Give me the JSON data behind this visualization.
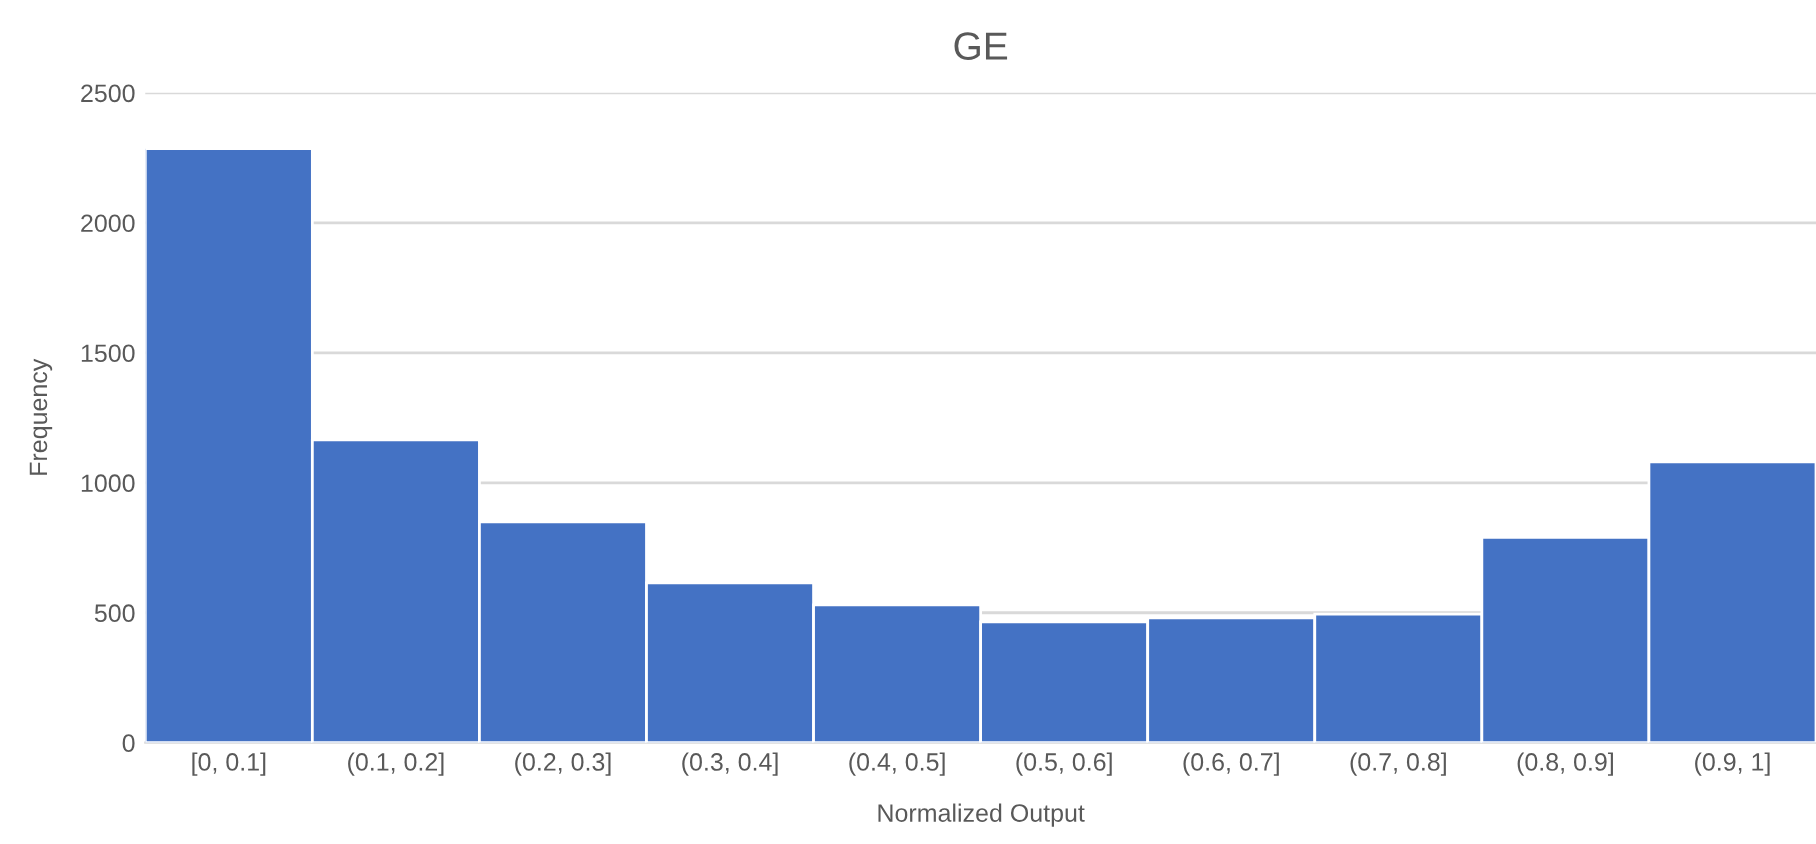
{
  "chart_data": {
    "type": "bar",
    "title": "GE",
    "xlabel": "Normalized Output",
    "ylabel": "Frequency",
    "categories": [
      "[0, 0.1]",
      "(0.1, 0.2]",
      "(0.2, 0.3]",
      "(0.3, 0.4]",
      "(0.4, 0.5]",
      "(0.5, 0.6]",
      "(0.6, 0.7]",
      "(0.7, 0.8]",
      "(0.8, 0.9]",
      "(0.9, 1]"
    ],
    "values": [
      2285,
      1165,
      850,
      615,
      530,
      465,
      480,
      495,
      790,
      1080
    ],
    "color": "#4472c4",
    "ylim": [
      0,
      2500
    ],
    "yticks": [
      0,
      500,
      1000,
      1500,
      2000,
      2500
    ],
    "grid": "y"
  }
}
